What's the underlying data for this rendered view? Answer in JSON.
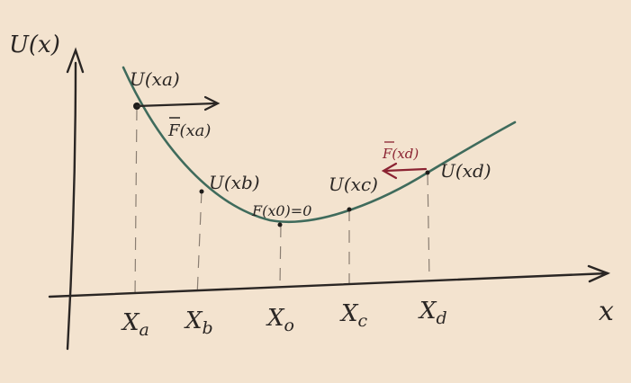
{
  "diagram": {
    "y_axis_label": "U(x)",
    "x_axis_label": "x",
    "x_ticks": [
      {
        "key": "xa",
        "label": "Xa",
        "main": "X",
        "sub": "a"
      },
      {
        "key": "xb",
        "label": "Xb",
        "main": "X",
        "sub": "b"
      },
      {
        "key": "x0",
        "label": "X0",
        "main": "X",
        "sub": "o"
      },
      {
        "key": "xc",
        "label": "Xc",
        "main": "X",
        "sub": "c"
      },
      {
        "key": "xd",
        "label": "Xd",
        "main": "X",
        "sub": "d"
      }
    ],
    "point_labels": {
      "ua": "U(xa)",
      "ub": "U(xb)",
      "u0": "F(x0)=0",
      "uc": "U(xc)",
      "ud": "U(xd)"
    },
    "force_labels": {
      "fa": "F(xa)",
      "fd": "F(xd)"
    },
    "colors": {
      "paper": "#f3e3cf",
      "ink": "#2a2624",
      "curve": "#3f6b5c",
      "guide": "#8a7e72",
      "force_d": "#8b2332"
    }
  }
}
